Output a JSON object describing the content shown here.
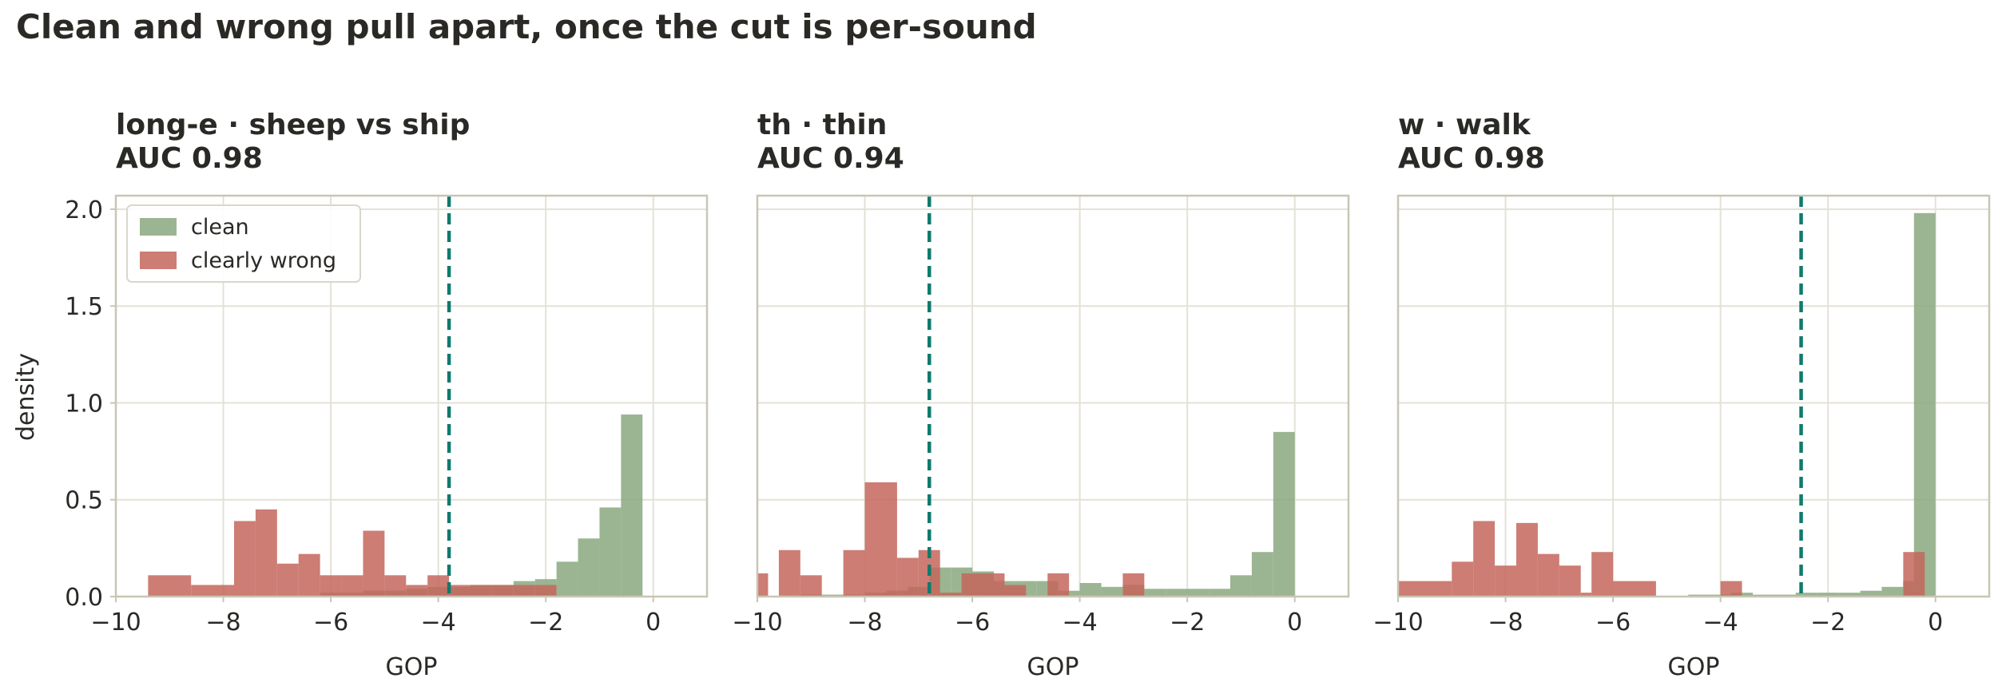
{
  "suptitle": "Clean and wrong pull apart, once the cut is per-sound",
  "colors": {
    "clean": "#8aa87f",
    "wrong": "#c4665c",
    "threshold": "#0f7a6e",
    "grid": "#e4e1d6",
    "frame": "#c8c6b4",
    "text": "#2b2926"
  },
  "chart_data": [
    {
      "type": "bar",
      "title": "long-e  ·  sheep vs ship",
      "subtitle": "AUC 0.98",
      "xlabel": "GOP",
      "ylabel": "density",
      "xlim": [
        -10,
        1
      ],
      "ylim": [
        0,
        2.07
      ],
      "xticks": [
        "−10",
        "−8",
        "−6",
        "−4",
        "−2",
        "0"
      ],
      "yticks": [
        "0.0",
        "0.5",
        "1.0",
        "1.5",
        "2.0"
      ],
      "threshold": -3.8,
      "grid": true,
      "legend": {
        "position": "top-left",
        "entries": [
          "clean",
          "clearly wrong"
        ]
      },
      "series": [
        {
          "name": "clean",
          "bins": [
            [
              -6.2,
              -5.8,
              0.02
            ],
            [
              -5.8,
              -5.4,
              0.02
            ],
            [
              -5.4,
              -5.0,
              0.03
            ],
            [
              -5.0,
              -4.6,
              0.03
            ],
            [
              -4.6,
              -4.2,
              0.04
            ],
            [
              -4.2,
              -3.8,
              0.05
            ],
            [
              -3.8,
              -3.4,
              0.05
            ],
            [
              -3.4,
              -3.0,
              0.06
            ],
            [
              -3.0,
              -2.6,
              0.06
            ],
            [
              -2.6,
              -2.2,
              0.08
            ],
            [
              -2.2,
              -1.8,
              0.09
            ],
            [
              -1.8,
              -1.4,
              0.18
            ],
            [
              -1.4,
              -1.0,
              0.3
            ],
            [
              -1.0,
              -0.6,
              0.46
            ],
            [
              -0.6,
              -0.2,
              0.94
            ]
          ]
        },
        {
          "name": "clearly wrong",
          "bins": [
            [
              -9.4,
              -8.6,
              0.11
            ],
            [
              -8.6,
              -7.8,
              0.06
            ],
            [
              -7.8,
              -7.4,
              0.39
            ],
            [
              -7.4,
              -7.0,
              0.45
            ],
            [
              -7.0,
              -6.6,
              0.17
            ],
            [
              -6.6,
              -6.2,
              0.22
            ],
            [
              -6.2,
              -5.8,
              0.11
            ],
            [
              -5.8,
              -5.4,
              0.11
            ],
            [
              -5.4,
              -5.0,
              0.34
            ],
            [
              -5.0,
              -4.6,
              0.11
            ],
            [
              -4.6,
              -4.2,
              0.06
            ],
            [
              -4.2,
              -3.8,
              0.11
            ],
            [
              -3.8,
              -3.4,
              0.06
            ],
            [
              -3.4,
              -3.0,
              0.06
            ],
            [
              -3.0,
              -2.6,
              0.06
            ],
            [
              -2.6,
              -2.2,
              0.06
            ],
            [
              -2.2,
              -1.8,
              0.06
            ]
          ]
        }
      ]
    },
    {
      "type": "bar",
      "title": "th  ·  thin",
      "subtitle": "AUC 0.94",
      "xlabel": "GOP",
      "xlim": [
        -10,
        1
      ],
      "ylim": [
        0,
        2.07
      ],
      "xticks": [
        "−10",
        "−8",
        "−6",
        "−4",
        "−2",
        "0"
      ],
      "threshold": -6.8,
      "grid": true,
      "series": [
        {
          "name": "clean",
          "bins": [
            [
              -9.2,
              -8.8,
              0.01
            ],
            [
              -8.8,
              -8.4,
              0.01
            ],
            [
              -8.4,
              -8.0,
              0.01
            ],
            [
              -8.0,
              -7.6,
              0.02
            ],
            [
              -7.6,
              -7.2,
              0.03
            ],
            [
              -7.2,
              -6.8,
              0.05
            ],
            [
              -6.8,
              -6.4,
              0.15
            ],
            [
              -6.4,
              -6.0,
              0.15
            ],
            [
              -6.0,
              -5.6,
              0.13
            ],
            [
              -5.6,
              -5.2,
              0.08
            ],
            [
              -5.2,
              -4.8,
              0.08
            ],
            [
              -4.8,
              -4.4,
              0.08
            ],
            [
              -4.4,
              -4.0,
              0.03
            ],
            [
              -4.0,
              -3.6,
              0.07
            ],
            [
              -3.6,
              -3.2,
              0.05
            ],
            [
              -3.2,
              -2.8,
              0.06
            ],
            [
              -2.8,
              -2.4,
              0.04
            ],
            [
              -2.4,
              -2.0,
              0.04
            ],
            [
              -2.0,
              -1.6,
              0.04
            ],
            [
              -1.6,
              -1.2,
              0.04
            ],
            [
              -1.2,
              -0.8,
              0.11
            ],
            [
              -0.8,
              -0.4,
              0.23
            ],
            [
              -0.4,
              0.0,
              0.85
            ]
          ]
        },
        {
          "name": "clearly wrong",
          "bins": [
            [
              -10.0,
              -9.8,
              0.12
            ],
            [
              -9.6,
              -9.2,
              0.24
            ],
            [
              -9.2,
              -8.8,
              0.11
            ],
            [
              -8.4,
              -8.0,
              0.24
            ],
            [
              -8.0,
              -7.4,
              0.59
            ],
            [
              -7.4,
              -7.0,
              0.2
            ],
            [
              -7.0,
              -6.6,
              0.24
            ],
            [
              -6.6,
              -6.2,
              0.02
            ],
            [
              -6.2,
              -5.8,
              0.12
            ],
            [
              -5.8,
              -5.4,
              0.12
            ],
            [
              -5.4,
              -5.0,
              0.06
            ],
            [
              -4.6,
              -4.2,
              0.12
            ],
            [
              -3.2,
              -2.8,
              0.12
            ]
          ]
        }
      ]
    },
    {
      "type": "bar",
      "title": "w  ·  walk",
      "subtitle": "AUC 0.98",
      "xlabel": "GOP",
      "xlim": [
        -10,
        1
      ],
      "ylim": [
        0,
        2.07
      ],
      "xticks": [
        "−10",
        "−8",
        "−6",
        "−4",
        "−2",
        "0"
      ],
      "threshold": -2.5,
      "grid": true,
      "series": [
        {
          "name": "clean",
          "bins": [
            [
              -4.6,
              -4.2,
              0.01
            ],
            [
              -4.2,
              -3.8,
              0.01
            ],
            [
              -3.8,
              -3.4,
              0.02
            ],
            [
              -3.4,
              -3.0,
              0.01
            ],
            [
              -3.0,
              -2.6,
              0.01
            ],
            [
              -2.6,
              -2.2,
              0.02
            ],
            [
              -2.2,
              -1.8,
              0.02
            ],
            [
              -1.8,
              -1.4,
              0.02
            ],
            [
              -1.4,
              -1.0,
              0.03
            ],
            [
              -1.0,
              -0.6,
              0.05
            ],
            [
              -0.6,
              -0.4,
              0.08
            ],
            [
              -0.4,
              0.0,
              1.98
            ]
          ]
        },
        {
          "name": "clearly wrong",
          "bins": [
            [
              -10.0,
              -9.0,
              0.08
            ],
            [
              -9.0,
              -8.6,
              0.18
            ],
            [
              -8.6,
              -8.2,
              0.39
            ],
            [
              -8.2,
              -7.8,
              0.16
            ],
            [
              -7.8,
              -7.4,
              0.38
            ],
            [
              -7.4,
              -7.0,
              0.22
            ],
            [
              -7.0,
              -6.6,
              0.16
            ],
            [
              -6.6,
              -6.4,
              0.02
            ],
            [
              -6.4,
              -6.0,
              0.23
            ],
            [
              -6.0,
              -5.2,
              0.08
            ],
            [
              -4.0,
              -3.6,
              0.08
            ],
            [
              -0.6,
              -0.2,
              0.23
            ]
          ]
        }
      ]
    }
  ]
}
